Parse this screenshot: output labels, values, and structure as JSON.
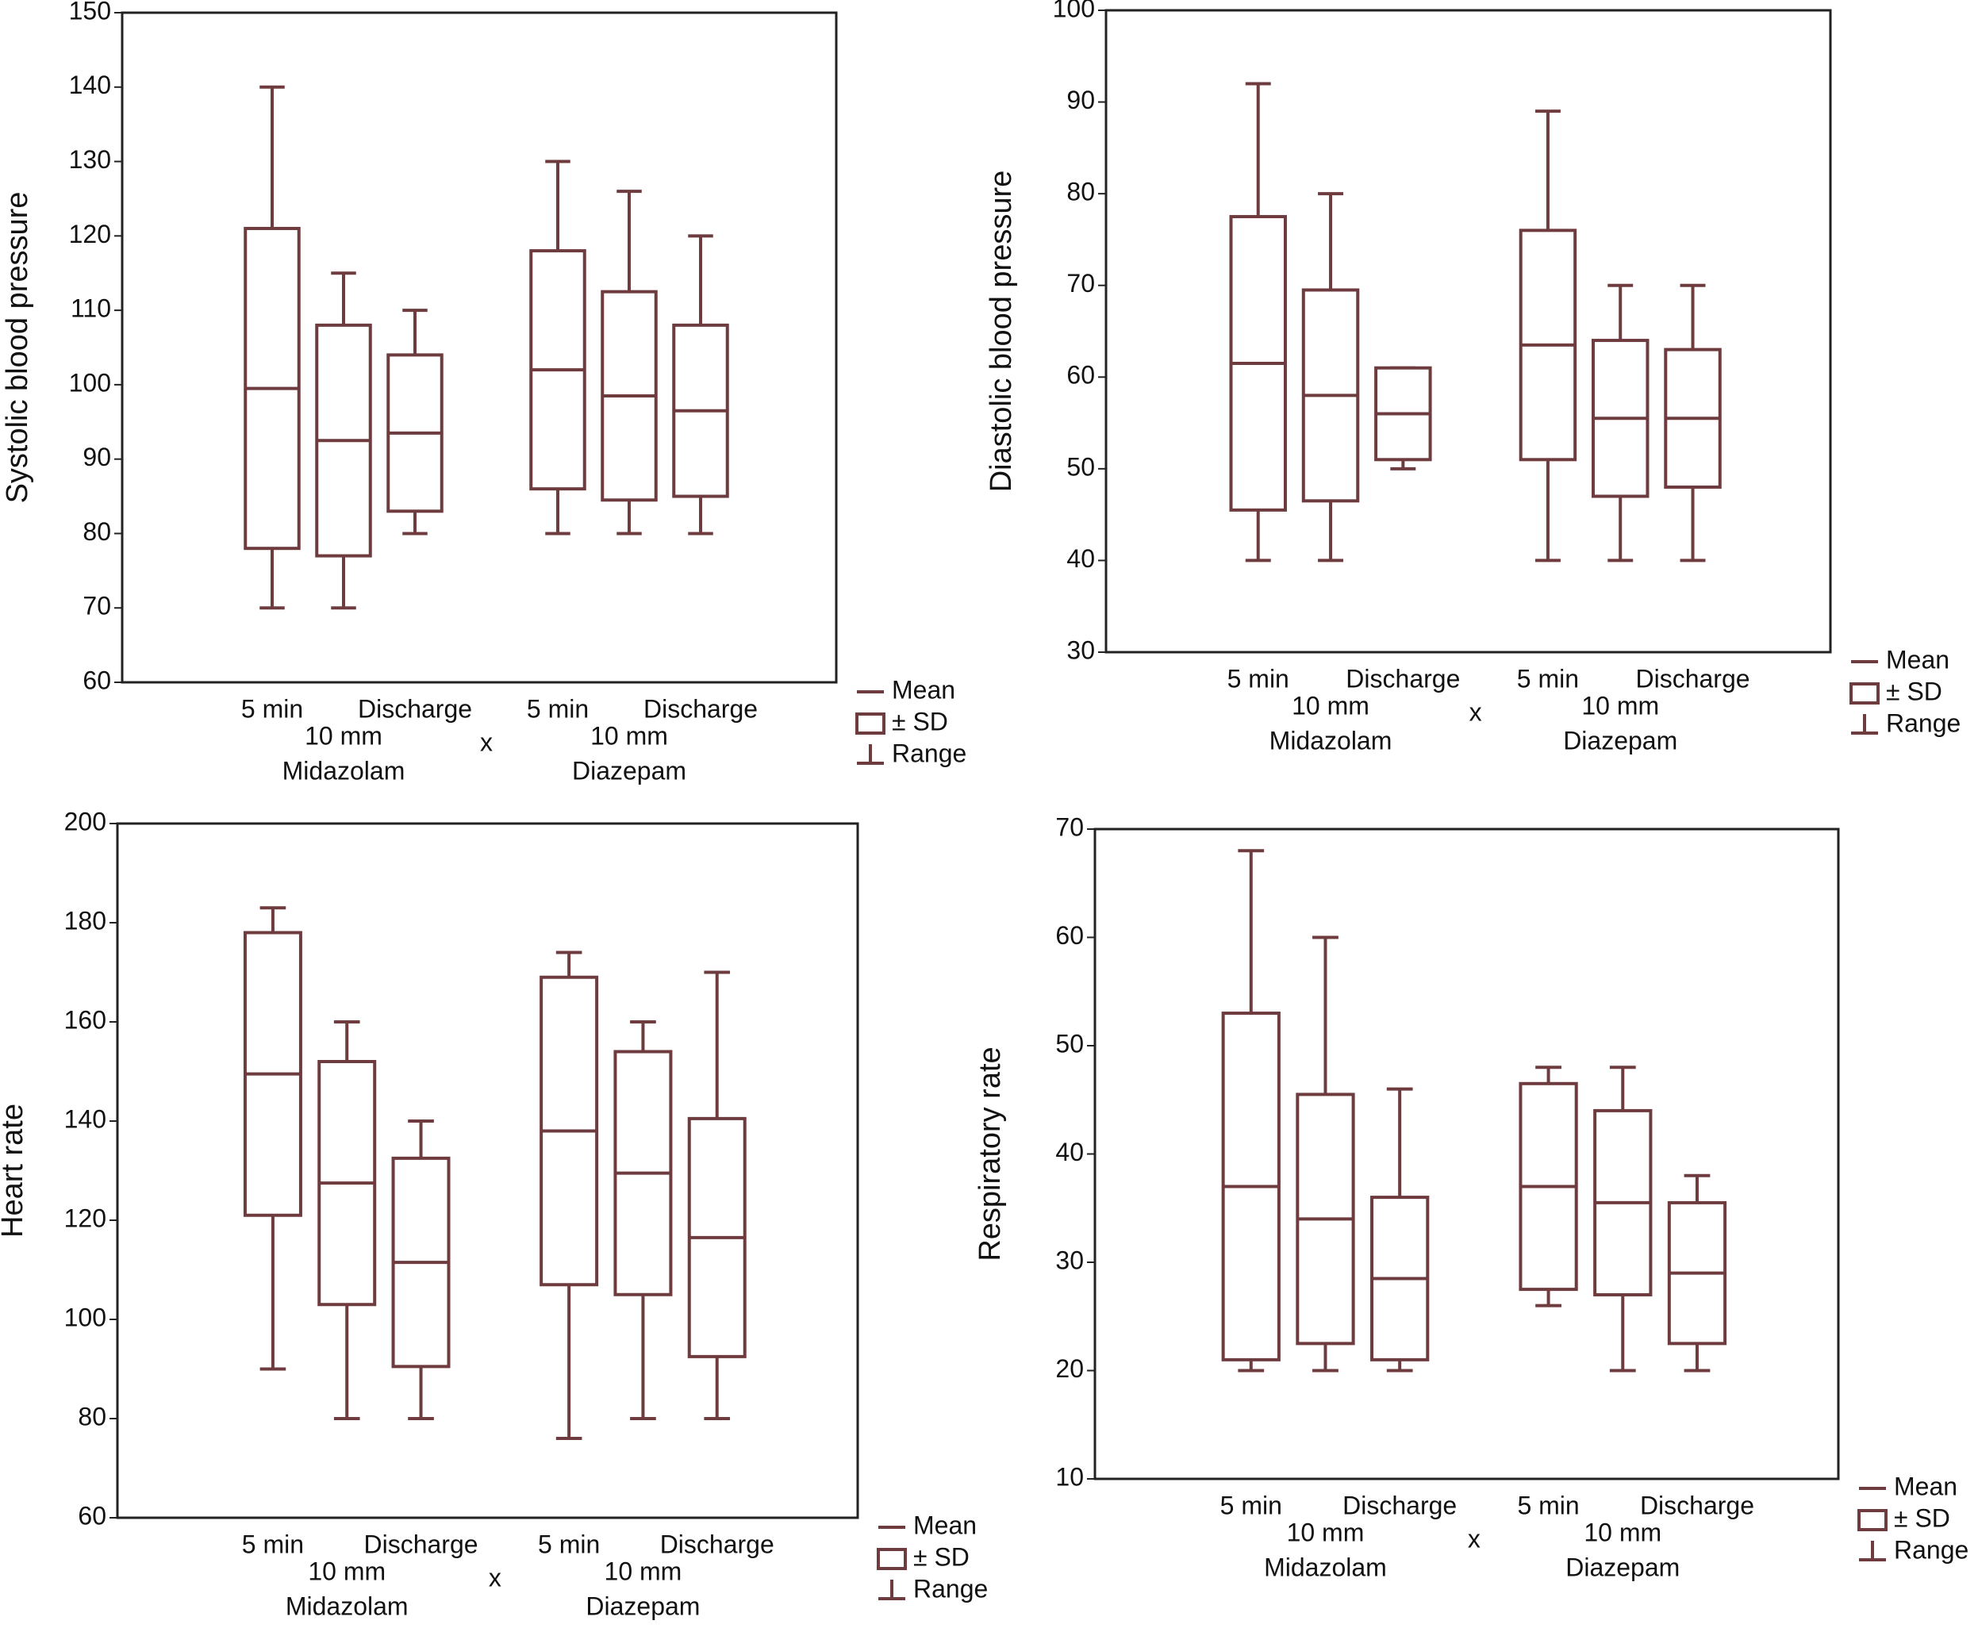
{
  "chart_data": [
    {
      "type": "box",
      "y_label": "Systolic blood pressure",
      "categories": [
        "5 min",
        "10 mm",
        "Discharge",
        "5 min",
        "10 mm",
        "Discharge"
      ],
      "groups": [
        "Midazolam",
        "Diazepam"
      ],
      "group_separator": "x",
      "mean": [
        99.5,
        92.5,
        93.5,
        102,
        98.5,
        96.5
      ],
      "sd": [
        21.5,
        15.5,
        10.5,
        16,
        14,
        11.5
      ],
      "min": [
        70,
        70,
        80,
        80,
        80,
        80
      ],
      "max": [
        140,
        115,
        110,
        130,
        126,
        120
      ],
      "ylim": [
        60,
        150
      ],
      "yticks": [
        60,
        70,
        80,
        90,
        100,
        110,
        120,
        130,
        140,
        150
      ],
      "color": "#6e3b3f",
      "legend": [
        "Mean",
        "± SD",
        "Range"
      ]
    },
    {
      "type": "box",
      "y_label": "Diastolic blood pressure",
      "categories": [
        "5 min",
        "10 mm",
        "Discharge",
        "5 min",
        "10 mm",
        "Discharge"
      ],
      "groups": [
        "Midazolam",
        "Diazepam"
      ],
      "group_separator": "x",
      "mean": [
        61.5,
        58,
        56,
        63.5,
        55.5,
        55.5
      ],
      "sd": [
        16,
        11.5,
        5,
        12.5,
        8.5,
        7.5
      ],
      "min": [
        40,
        40,
        50,
        40,
        40,
        40
      ],
      "max": [
        92,
        80,
        61,
        89,
        70,
        70
      ],
      "ylim": [
        30,
        100
      ],
      "yticks": [
        30,
        40,
        50,
        60,
        70,
        80,
        90,
        100
      ],
      "color": "#6e3b3f",
      "legend": [
        "Mean",
        "± SD",
        "Range"
      ]
    },
    {
      "type": "box",
      "y_label": "Heart rate",
      "categories": [
        "5 min",
        "10 mm",
        "Discharge",
        "5 min",
        "10 mm",
        "Discharge"
      ],
      "groups": [
        "Midazolam",
        "Diazepam"
      ],
      "group_separator": "x",
      "mean": [
        149.5,
        127.5,
        111.5,
        138,
        129.5,
        116.5
      ],
      "sd": [
        28.5,
        24.5,
        21,
        31,
        24.5,
        24
      ],
      "min": [
        90,
        80,
        80,
        76,
        80,
        80
      ],
      "max": [
        183,
        160,
        140,
        174,
        160,
        170
      ],
      "ylim": [
        60,
        200
      ],
      "yticks": [
        60,
        80,
        100,
        120,
        140,
        160,
        180,
        200
      ],
      "color": "#6e3b3f",
      "legend": [
        "Mean",
        "± SD",
        "Range"
      ]
    },
    {
      "type": "box",
      "y_label": "Respiratory rate",
      "categories": [
        "5 min",
        "10 mm",
        "Discharge",
        "5 min",
        "10 mm",
        "Discharge"
      ],
      "groups": [
        "Midazolam",
        "Diazepam"
      ],
      "group_separator": "x",
      "mean": [
        37,
        34,
        28.5,
        37,
        35.5,
        29
      ],
      "sd": [
        16,
        11.5,
        7.5,
        9.5,
        8.5,
        6.5
      ],
      "min": [
        20,
        20,
        20,
        26,
        20,
        20
      ],
      "max": [
        68,
        60,
        46,
        48,
        48,
        38
      ],
      "ylim": [
        10,
        70
      ],
      "yticks": [
        10,
        20,
        30,
        40,
        50,
        60,
        70
      ],
      "color": "#6e3b3f",
      "legend": [
        "Mean",
        "± SD",
        "Range"
      ]
    }
  ]
}
